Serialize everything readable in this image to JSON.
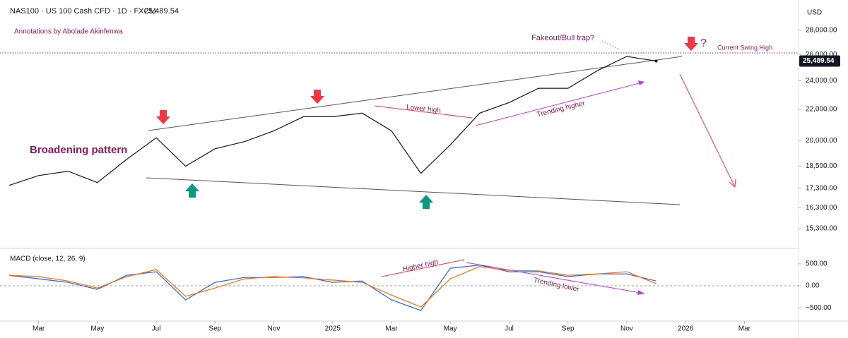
{
  "header": {
    "symbol": "NAS100 · US 100 Cash CFD · 1D · FXCM",
    "price": "25,489.54",
    "annotations_by": "Annotations by Abolade Akinfenwa",
    "currency": "USD"
  },
  "annotations": {
    "pattern": "Broadening pattern",
    "lower_high": "Lower high",
    "trending_higher": "Trending higher",
    "fakeout": "Fakeout/Bull trap?",
    "swing_high": "Current Swing High",
    "question": "?",
    "higher_high": "Higher high",
    "trending_lower": "Trending lower"
  },
  "chart_data": [
    {
      "type": "line",
      "log": true,
      "grid": false,
      "color": "#131722",
      "last_label": "25,489.54",
      "x": [
        "2024-02",
        "2024-03",
        "2024-04",
        "2024-05",
        "2024-06",
        "2024-07",
        "2024-08",
        "2024-09",
        "2024-10",
        "2024-11",
        "2024-12",
        "2025-01",
        "2025-02",
        "2025-03",
        "2025-04",
        "2025-05",
        "2025-06",
        "2025-07",
        "2025-08",
        "2025-09",
        "2025-10",
        "2025-11",
        "2025-12"
      ],
      "values": [
        17450,
        17980,
        18220,
        17600,
        18900,
        20170,
        18500,
        19510,
        19940,
        20600,
        21510,
        21510,
        21750,
        20600,
        18100,
        19740,
        21750,
        22460,
        23460,
        23460,
        24750,
        25850,
        25489.54
      ],
      "xlim": [
        "2024-02",
        "2026-04"
      ],
      "xticks": [
        {
          "value": "2024-03",
          "label": "Mar"
        },
        {
          "value": "2024-05",
          "label": "May"
        },
        {
          "value": "2024-07",
          "label": "Jul"
        },
        {
          "value": "2024-09",
          "label": "Sep"
        },
        {
          "value": "2024-11",
          "label": "Nov"
        },
        {
          "value": "2025-01",
          "label": "2025"
        },
        {
          "value": "2025-03",
          "label": "Mar"
        },
        {
          "value": "2025-05",
          "label": "May"
        },
        {
          "value": "2025-07",
          "label": "Jul"
        },
        {
          "value": "2025-09",
          "label": "Sep"
        },
        {
          "value": "2025-11",
          "label": "Nov"
        },
        {
          "value": "2026-01",
          "label": "2026"
        },
        {
          "value": "2026-03",
          "label": "Mar"
        }
      ],
      "ylim": [
        14400,
        30700
      ],
      "yticks": [
        {
          "value": 28000,
          "label": "28,000.00"
        },
        {
          "value": 26000,
          "label": "26,000.00"
        },
        {
          "value": 24000,
          "label": "24,000.00"
        },
        {
          "value": 22000,
          "label": "22,000.00"
        },
        {
          "value": 20000,
          "label": "20,000.00"
        },
        {
          "value": 18500,
          "label": "18,500.00"
        },
        {
          "value": 17300,
          "label": "17,300.00"
        },
        {
          "value": 16300,
          "label": "16,300.00"
        },
        {
          "value": 15300,
          "label": "15,300.00"
        }
      ]
    },
    {
      "type": "line",
      "title": "MACD (close, 12, 26, 9)",
      "zero_line": true,
      "x": [
        "2024-02",
        "2024-03",
        "2024-04",
        "2024-05",
        "2024-06",
        "2024-07",
        "2024-08",
        "2024-09",
        "2024-10",
        "2024-11",
        "2024-12",
        "2025-01",
        "2025-02",
        "2025-03",
        "2025-04",
        "2025-05",
        "2025-06",
        "2025-07",
        "2025-08",
        "2025-09",
        "2025-10",
        "2025-11",
        "2025-12"
      ],
      "xlim": [
        "2024-02",
        "2026-04"
      ],
      "series": [
        {
          "color": "#2962ff",
          "values": [
            240,
            160,
            80,
            -80,
            240,
            320,
            -320,
            80,
            190,
            190,
            210,
            80,
            110,
            -320,
            -560,
            400,
            470,
            320,
            320,
            210,
            270,
            270,
            110
          ]
        },
        {
          "color": "#ff6d00",
          "values": [
            240,
            210,
            110,
            -50,
            210,
            370,
            -240,
            -50,
            160,
            210,
            180,
            130,
            80,
            -210,
            -480,
            160,
            440,
            350,
            340,
            240,
            270,
            320,
            50
          ]
        }
      ],
      "ylim": [
        -800,
        850
      ],
      "yticks": [
        {
          "value": 500,
          "label": "500.00"
        },
        {
          "value": 0,
          "label": "0.00"
        },
        {
          "value": -500,
          "label": "−500.00"
        }
      ]
    }
  ]
}
